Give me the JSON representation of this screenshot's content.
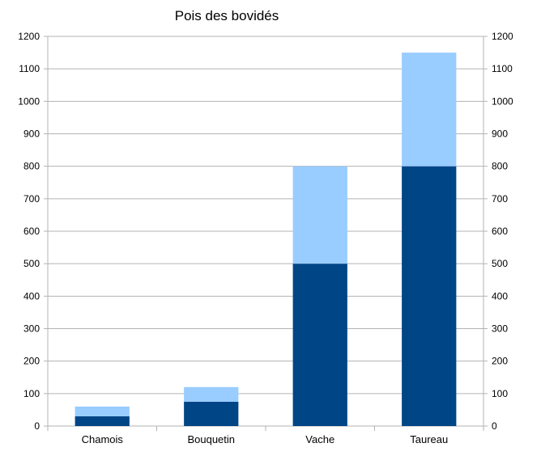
{
  "chart_data": {
    "type": "bar",
    "stacked": true,
    "title": "Pois des bovidés",
    "categories": [
      "Chamois",
      "Bouquetin",
      "Vache",
      "Taureau"
    ],
    "series": [
      {
        "values": [
          30,
          75,
          500,
          800
        ],
        "color": "#004586"
      },
      {
        "values": [
          30,
          45,
          300,
          350
        ],
        "color": "#99ccff"
      }
    ],
    "ylim": [
      0,
      1200
    ],
    "yticks": [
      0,
      100,
      200,
      300,
      400,
      500,
      600,
      700,
      800,
      900,
      1000,
      1100,
      1200
    ],
    "secondary_axis": true,
    "grid": true,
    "legend": "none"
  }
}
